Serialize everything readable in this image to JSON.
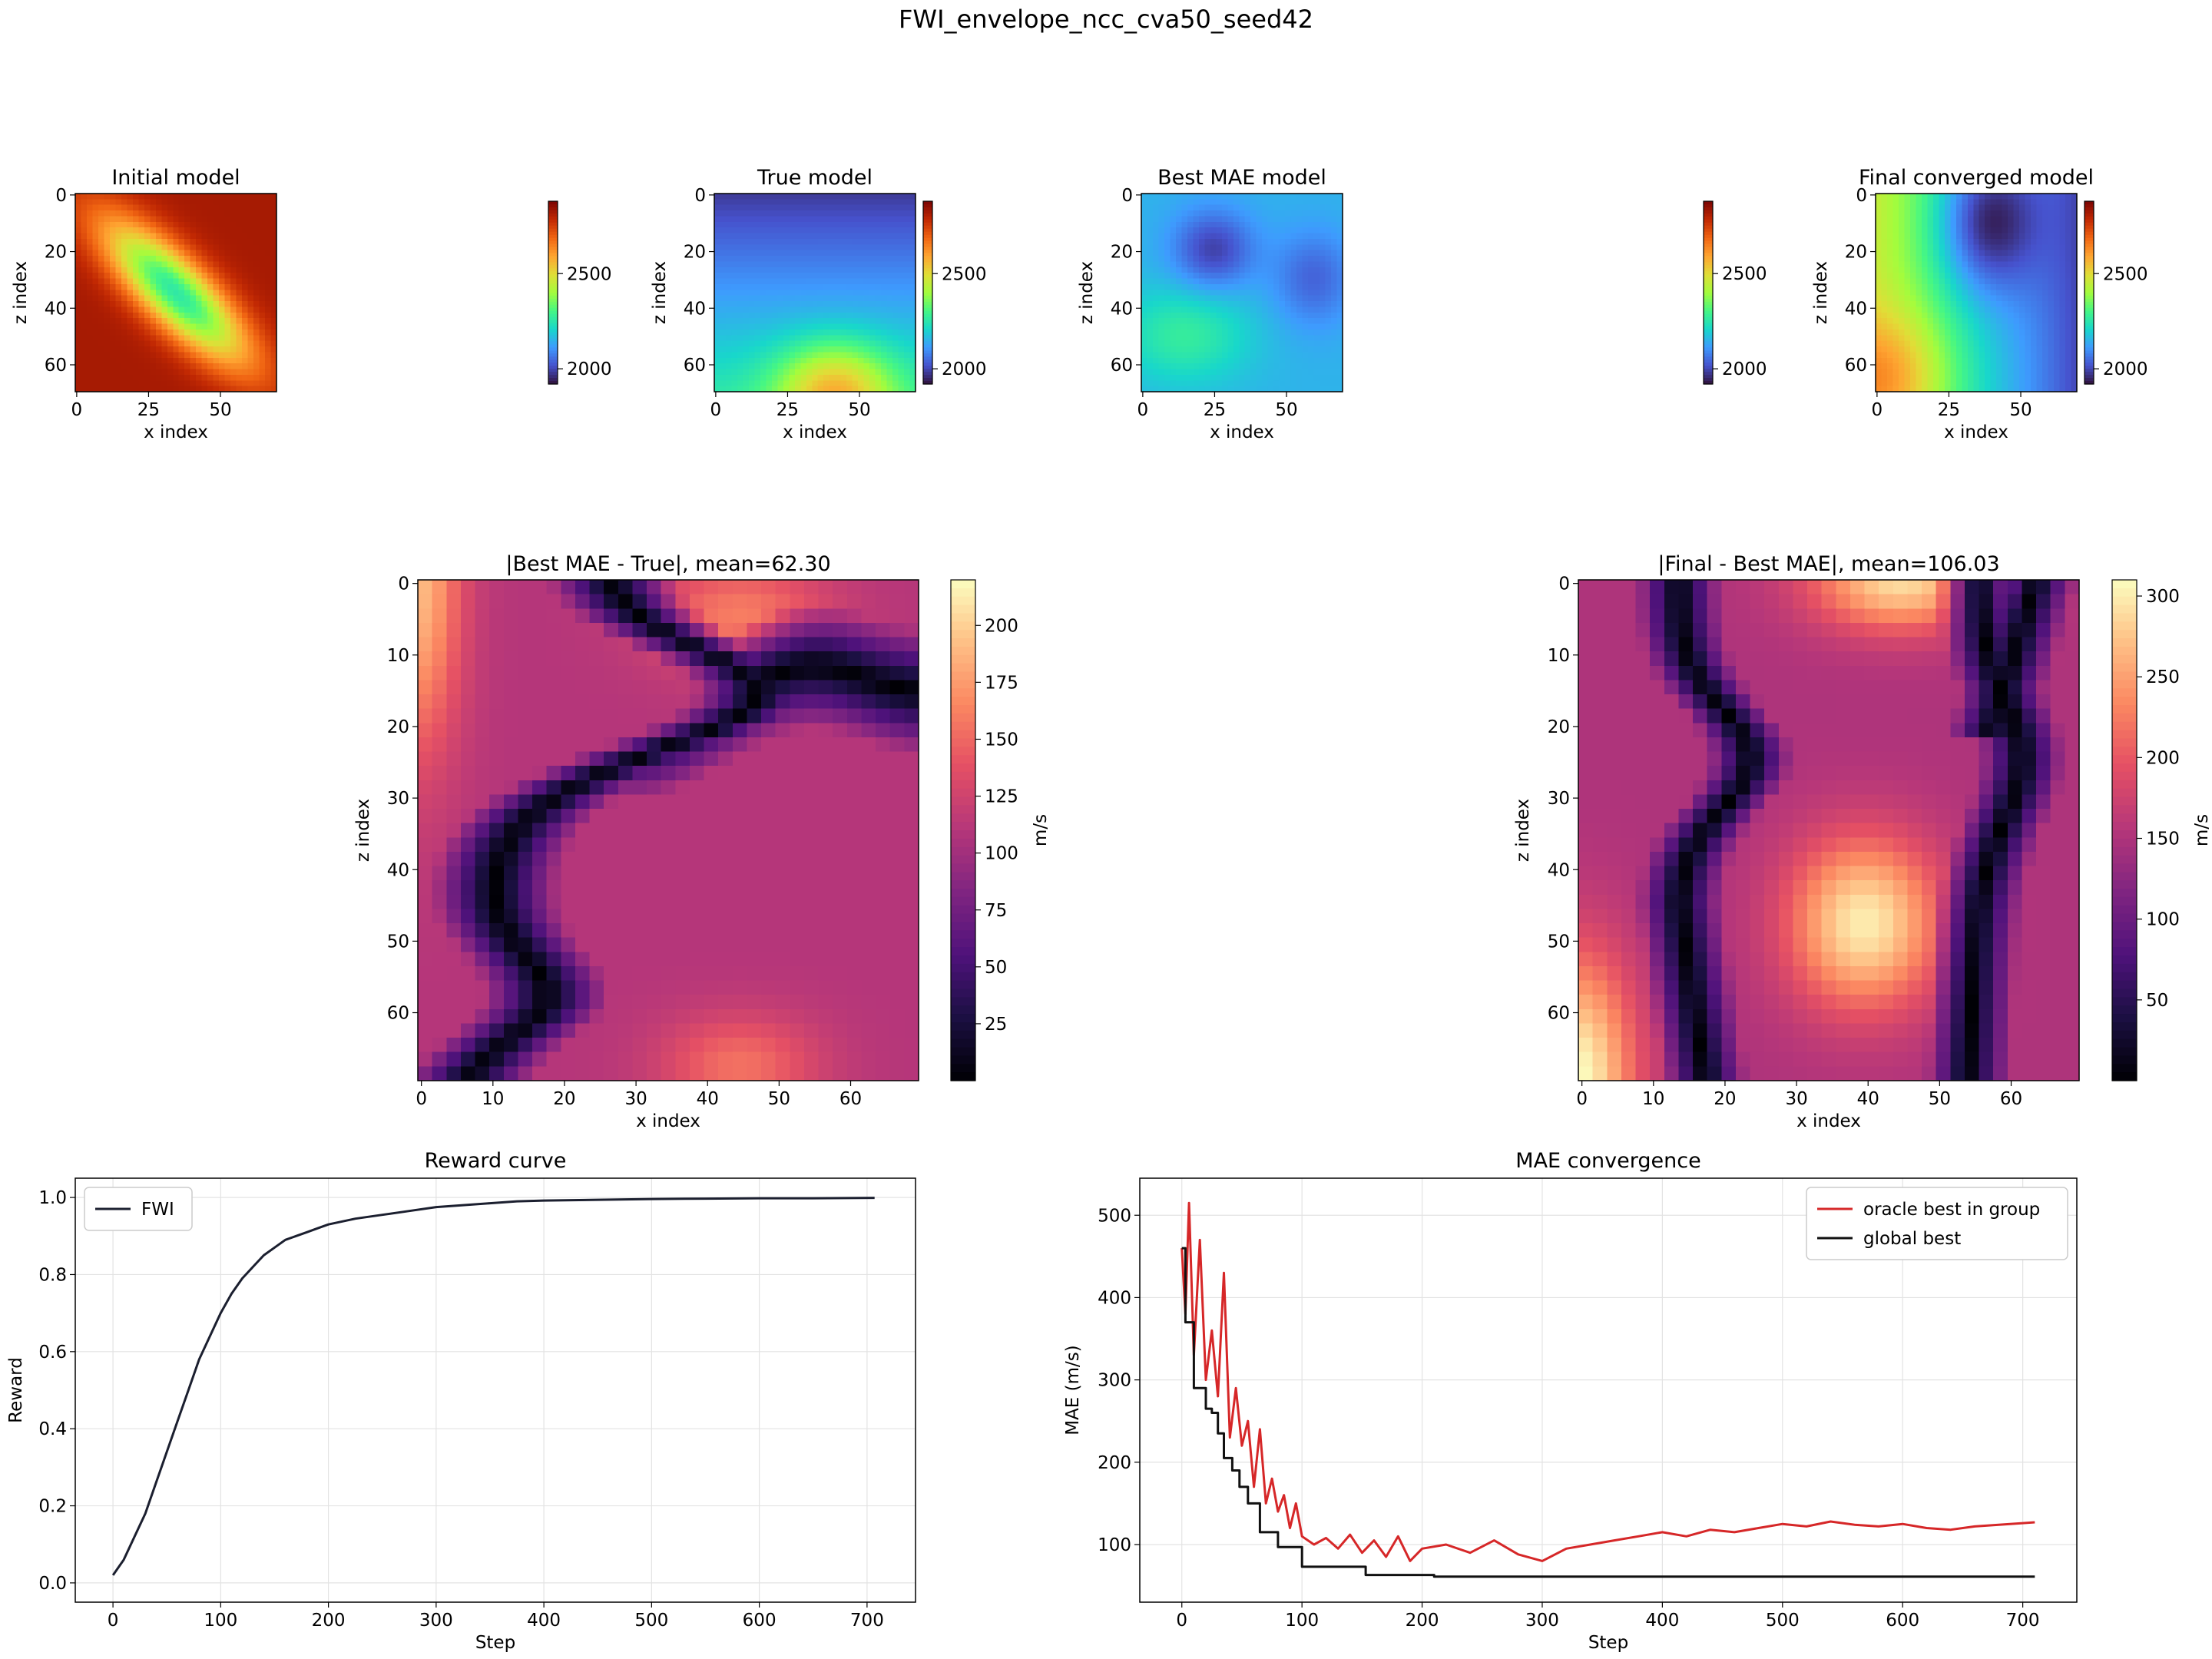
{
  "figure": {
    "suptitle": "FWI_envelope_ncc_cva50_seed42"
  },
  "colors": {
    "fwi_line": "#1b1f2f",
    "oracle_line": "#d62728",
    "global_best_line": "#111111",
    "grid": "#e3e3e3"
  },
  "chart_data": [
    {
      "id": "initial",
      "type": "heatmap",
      "title": "Initial model",
      "xlabel": "x index",
      "ylabel": "z index",
      "xticks": [
        "0",
        "25",
        "50"
      ],
      "yticks": [
        "0",
        "20",
        "40",
        "60"
      ],
      "xlim": [
        0,
        70
      ],
      "ylim": [
        0,
        70
      ],
      "colormap": "turbo",
      "clim": [
        1920,
        2880
      ],
      "colorbar_ticks": [
        "2000",
        "2500"
      ],
      "field": {
        "base": 2820,
        "blobs": [
          {
            "x": 35,
            "z": 35,
            "amp": -560,
            "sx": 24,
            "sz": 8,
            "angle": 45
          }
        ]
      }
    },
    {
      "id": "true",
      "type": "heatmap",
      "title": "True model",
      "xlabel": "x index",
      "ylabel": "z index",
      "xticks": [
        "0",
        "25",
        "50"
      ],
      "yticks": [
        "0",
        "20",
        "40",
        "60"
      ],
      "xlim": [
        0,
        70
      ],
      "ylim": [
        0,
        70
      ],
      "colormap": "turbo",
      "clim": [
        1920,
        2880
      ],
      "colorbar_ticks": [
        "2000",
        "2500"
      ],
      "field": {
        "base": 2150,
        "zgrad": [
          1980,
          2250
        ],
        "blobs": [
          {
            "x": 42,
            "z": 70,
            "amp": 330,
            "sx": 14,
            "sz": 12,
            "angle": 0
          }
        ]
      }
    },
    {
      "id": "bestmae",
      "type": "heatmap",
      "title": "Best MAE model",
      "xlabel": "x index",
      "ylabel": "z index",
      "xticks": [
        "0",
        "25",
        "50"
      ],
      "yticks": [
        "0",
        "20",
        "40",
        "60"
      ],
      "xlim": [
        0,
        70
      ],
      "ylim": [
        0,
        70
      ],
      "colormap": "turbo",
      "clim": [
        1920,
        2880
      ],
      "field": {
        "base": 2150,
        "blobs": [
          {
            "x": 25,
            "z": 20,
            "amp": -160,
            "sx": 10,
            "sz": 10,
            "angle": 0
          },
          {
            "x": 60,
            "z": 30,
            "amp": -110,
            "sx": 10,
            "sz": 12,
            "angle": 0
          },
          {
            "x": 15,
            "z": 50,
            "amp": 120,
            "sx": 16,
            "sz": 12,
            "angle": 0
          }
        ]
      }
    },
    {
      "id": "final",
      "type": "heatmap",
      "title": "Final converged model",
      "xlabel": "x index",
      "ylabel": "z index",
      "xticks": [
        "0",
        "25",
        "50"
      ],
      "yticks": [
        "0",
        "20",
        "40",
        "60"
      ],
      "xlim": [
        0,
        70
      ],
      "ylim": [
        0,
        70
      ],
      "colormap": "turbo",
      "clim": [
        1920,
        2880
      ],
      "colorbar_ticks": [
        "2000",
        "2500"
      ],
      "field": {
        "base": 2100,
        "xgrad": [
          2450,
          2000
        ],
        "blobs": [
          {
            "x": 38,
            "z": 10,
            "amp": -250,
            "sx": 12,
            "sz": 18,
            "angle": 0
          },
          {
            "x": 5,
            "z": 65,
            "amp": 200,
            "sx": 14,
            "sz": 16,
            "angle": 0
          }
        ]
      }
    },
    {
      "id": "diff1",
      "type": "heatmap",
      "title": "|Best MAE - True|, mean=62.30",
      "xlabel": "x index",
      "ylabel": "z index",
      "xticks": [
        "0",
        "10",
        "20",
        "30",
        "40",
        "50",
        "60"
      ],
      "yticks": [
        "0",
        "10",
        "20",
        "30",
        "40",
        "50",
        "60"
      ],
      "xlim": [
        0,
        70
      ],
      "ylim": [
        0,
        70
      ],
      "colormap": "magma",
      "clim": [
        0,
        220
      ],
      "colorbar_ticks": [
        "25",
        "50",
        "75",
        "100",
        "125",
        "150",
        "175",
        "200"
      ],
      "colorbar_label": "m/s"
    },
    {
      "id": "diff2",
      "type": "heatmap",
      "title": "|Final - Best MAE|, mean=106.03",
      "xlabel": "x index",
      "ylabel": "z index",
      "xticks": [
        "0",
        "10",
        "20",
        "30",
        "40",
        "50",
        "60"
      ],
      "yticks": [
        "0",
        "10",
        "20",
        "30",
        "40",
        "50",
        "60"
      ],
      "xlim": [
        0,
        70
      ],
      "ylim": [
        0,
        70
      ],
      "colormap": "magma",
      "clim": [
        0,
        310
      ],
      "colorbar_ticks": [
        "50",
        "100",
        "150",
        "200",
        "250",
        "300"
      ],
      "colorbar_label": "m/s"
    },
    {
      "id": "reward",
      "type": "line",
      "title": "Reward curve",
      "xlabel": "Step",
      "ylabel": "Reward",
      "xlim": [
        -35,
        745
      ],
      "ylim": [
        -0.05,
        1.05
      ],
      "xticks": [
        "0",
        "100",
        "200",
        "300",
        "400",
        "500",
        "600",
        "700"
      ],
      "yticks": [
        "0.0",
        "0.2",
        "0.4",
        "0.6",
        "0.8",
        "1.0"
      ],
      "grid": true,
      "legend_position": "upper-left",
      "series": [
        {
          "name": "FWI",
          "x": [
            0,
            10,
            20,
            30,
            40,
            50,
            60,
            70,
            80,
            90,
            100,
            110,
            120,
            130,
            140,
            150,
            160,
            170,
            180,
            190,
            200,
            225,
            250,
            275,
            300,
            325,
            350,
            375,
            400,
            450,
            500,
            550,
            600,
            650,
            707
          ],
          "y": [
            0.02,
            0.06,
            0.12,
            0.18,
            0.26,
            0.34,
            0.42,
            0.5,
            0.58,
            0.64,
            0.7,
            0.75,
            0.79,
            0.82,
            0.85,
            0.87,
            0.89,
            0.9,
            0.91,
            0.92,
            0.93,
            0.945,
            0.955,
            0.965,
            0.975,
            0.98,
            0.985,
            0.99,
            0.992,
            0.994,
            0.996,
            0.997,
            0.998,
            0.998,
            0.999
          ]
        }
      ]
    },
    {
      "id": "mae",
      "type": "line",
      "title": "MAE convergence",
      "xlabel": "Step",
      "ylabel": "MAE (m/s)",
      "xlim": [
        -35,
        745
      ],
      "ylim": [
        30,
        545
      ],
      "xticks": [
        "0",
        "100",
        "200",
        "300",
        "400",
        "500",
        "600",
        "700"
      ],
      "yticks": [
        "100",
        "200",
        "300",
        "400",
        "500"
      ],
      "grid": true,
      "legend_position": "upper-right",
      "series": [
        {
          "name": "oracle best in group",
          "x": [
            0,
            3,
            6,
            10,
            15,
            20,
            25,
            30,
            35,
            40,
            45,
            50,
            55,
            60,
            65,
            70,
            75,
            80,
            85,
            90,
            95,
            100,
            110,
            120,
            130,
            140,
            150,
            160,
            170,
            180,
            190,
            200,
            220,
            240,
            260,
            280,
            300,
            320,
            340,
            360,
            380,
            400,
            420,
            440,
            460,
            480,
            500,
            520,
            540,
            560,
            580,
            600,
            620,
            640,
            660,
            680,
            700,
            710
          ],
          "y": [
            460,
            380,
            515,
            330,
            470,
            300,
            360,
            280,
            430,
            230,
            290,
            220,
            250,
            170,
            240,
            150,
            180,
            140,
            160,
            120,
            150,
            110,
            100,
            108,
            95,
            112,
            90,
            105,
            85,
            110,
            80,
            95,
            100,
            90,
            105,
            88,
            80,
            95,
            100,
            105,
            110,
            115,
            110,
            118,
            115,
            120,
            125,
            122,
            128,
            124,
            122,
            125,
            120,
            118,
            122,
            124,
            126,
            127
          ]
        },
        {
          "name": "global best",
          "x": [
            0,
            3,
            3,
            10,
            10,
            20,
            20,
            25,
            25,
            30,
            30,
            35,
            35,
            42,
            42,
            48,
            48,
            55,
            55,
            65,
            65,
            80,
            80,
            100,
            100,
            153,
            153,
            210,
            210,
            710
          ],
          "y": [
            460,
            460,
            370,
            370,
            290,
            290,
            265,
            265,
            260,
            260,
            235,
            235,
            205,
            205,
            190,
            190,
            170,
            170,
            150,
            150,
            115,
            115,
            97,
            97,
            73,
            73,
            63,
            63,
            61,
            61
          ]
        }
      ]
    }
  ]
}
